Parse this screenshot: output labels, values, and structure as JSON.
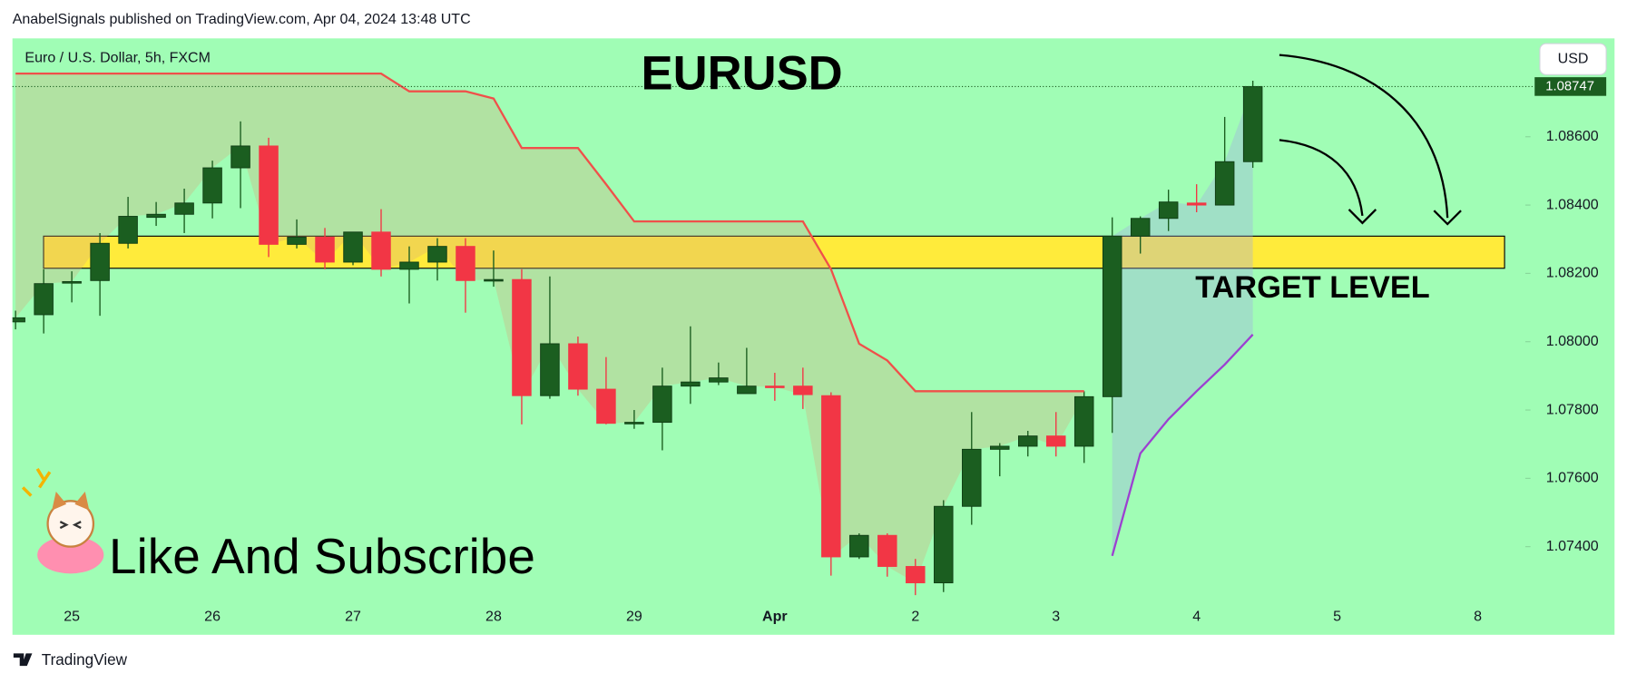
{
  "header": {
    "text": "AnabelSignals published on TradingView.com, Apr 04, 2024 13:48 UTC"
  },
  "footer": {
    "brand": "TradingView"
  },
  "chart_data": {
    "type": "candlestick",
    "title": "EURUSD",
    "symbol": "Euro / U.S. Dollar, 5h, FXCM",
    "currency": "USD",
    "annotations": [
      "TARGET LEVEL",
      "Like And Subscribe"
    ],
    "categories": [
      null,
      null,
      "25",
      null,
      null,
      null,
      null,
      "26",
      null,
      null,
      null,
      null,
      "27",
      null,
      null,
      null,
      null,
      "28",
      null,
      null,
      null,
      null,
      "29",
      null,
      null,
      null,
      null,
      "Apr",
      null,
      null,
      null,
      null,
      "2",
      null,
      null,
      null,
      null,
      "3",
      null,
      null,
      null,
      null,
      "4",
      null,
      null,
      null,
      null,
      "5",
      null,
      null,
      null,
      null,
      "8"
    ],
    "open": [
      1.08058,
      1.08079,
      1.08173,
      1.08179,
      1.08288,
      1.08364,
      1.08373,
      1.08406,
      1.08509,
      1.08573,
      1.08285,
      1.08306,
      1.08233,
      1.08321,
      1.08212,
      1.08233,
      1.08279,
      1.08179,
      1.08182,
      1.07842,
      1.07994,
      1.07861,
      1.07761,
      1.07764,
      1.0787,
      1.07882,
      1.07848,
      1.0787,
      1.0787,
      1.07842,
      1.0737,
      1.07433,
      1.07342,
      1.07294,
      1.07518,
      1.07685,
      1.07694,
      1.07724,
      1.07694,
      1.07839,
      1.08309,
      1.08361,
      1.08406,
      1.084,
      1.08527,
      null,
      null,
      null,
      null,
      null,
      null,
      null,
      null
    ],
    "high": [
      1.08091,
      1.08212,
      1.08206,
      1.08318,
      1.08424,
      1.08409,
      1.08448,
      1.0853,
      1.08645,
      1.08597,
      1.08358,
      1.08333,
      1.08321,
      1.08388,
      1.08279,
      1.08303,
      1.08303,
      1.08267,
      1.08212,
      1.08191,
      1.08015,
      1.07955,
      1.078,
      1.07924,
      1.08045,
      1.07939,
      1.07982,
      1.07909,
      1.07924,
      1.07852,
      1.07439,
      1.07439,
      1.07364,
      1.07536,
      1.07794,
      1.07703,
      1.07739,
      1.07794,
      1.07855,
      1.08364,
      1.08367,
      1.08445,
      1.08461,
      1.08658,
      1.08764,
      null,
      null,
      null,
      null,
      null,
      null,
      null,
      null
    ],
    "low": [
      1.08036,
      1.08024,
      1.08115,
      1.08076,
      1.08273,
      1.08339,
      1.08318,
      1.08361,
      1.08391,
      1.08248,
      1.08273,
      1.08212,
      1.08224,
      1.08191,
      1.08112,
      1.08179,
      1.08085,
      1.08161,
      1.07758,
      1.07833,
      1.07842,
      1.07758,
      1.07745,
      1.07682,
      1.07818,
      1.07873,
      1.07848,
      1.07827,
      1.07803,
      1.07315,
      1.07364,
      1.07312,
      1.07258,
      1.07267,
      1.07464,
      1.07606,
      1.07664,
      1.07664,
      1.07645,
      1.07733,
      1.08258,
      1.08324,
      1.08379,
      1.084,
      1.08509,
      null,
      null,
      null,
      null,
      null,
      null,
      null,
      null
    ],
    "close": [
      1.0807,
      1.0817,
      1.08176,
      1.08288,
      1.08367,
      1.08373,
      1.08406,
      1.08509,
      1.08573,
      1.08285,
      1.08306,
      1.08233,
      1.08321,
      1.08212,
      1.08233,
      1.08279,
      1.08179,
      1.08182,
      1.07842,
      1.07994,
      1.07861,
      1.07761,
      1.07764,
      1.0787,
      1.07882,
      1.07894,
      1.0787,
      1.07867,
      1.07845,
      1.0737,
      1.07433,
      1.07342,
      1.07294,
      1.07518,
      1.07685,
      1.07694,
      1.07724,
      1.07694,
      1.07839,
      1.08309,
      1.08361,
      1.08409,
      1.084,
      1.08527,
      1.08747,
      null,
      null,
      null,
      null,
      null,
      null,
      null,
      null
    ],
    "up_color": "#1b5e20",
    "down_color": "#f23645",
    "lines": [
      {
        "color": "#f0504a",
        "fill": "rgba(214,170,120,0.32)",
        "values": [
          1.08785,
          1.08785,
          1.08785,
          1.08785,
          1.08785,
          1.08785,
          1.08785,
          1.08785,
          1.08785,
          1.08785,
          1.08785,
          1.08785,
          1.08785,
          1.08785,
          1.08733,
          1.08733,
          1.08733,
          1.08712,
          1.08567,
          1.08567,
          1.08567,
          1.08461,
          1.08352,
          1.08352,
          1.08352,
          1.08352,
          1.08352,
          1.08352,
          1.08352,
          1.08212,
          1.07994,
          1.07945,
          1.07855,
          1.07855,
          1.07855,
          1.07855,
          1.07855,
          1.07855,
          1.07855,
          null,
          null,
          null,
          null,
          null,
          null,
          null,
          null,
          null,
          null,
          null,
          null,
          null,
          null
        ]
      },
      {
        "color": "#9c3fd1",
        "fill": "rgba(160,170,230,0.35)",
        "values": [
          null,
          null,
          null,
          null,
          null,
          null,
          null,
          null,
          null,
          null,
          null,
          null,
          null,
          null,
          null,
          null,
          null,
          null,
          null,
          null,
          null,
          null,
          null,
          null,
          null,
          null,
          null,
          null,
          null,
          null,
          null,
          null,
          null,
          null,
          null,
          null,
          null,
          null,
          null,
          1.07373,
          1.07673,
          1.07773,
          1.07855,
          1.07933,
          1.08021,
          null,
          null,
          null,
          null,
          null,
          null,
          null,
          null
        ]
      }
    ],
    "zone": {
      "from": 1.08215,
      "to": 1.08309,
      "color": "#ffeb3b"
    },
    "last_price": {
      "value": 1.08747,
      "label": "1.08747"
    },
    "background": "#a0fdb5",
    "ylim": [
      1.07142,
      1.08888
    ],
    "yticks": [
      {
        "value": 1.074,
        "label": "1.07400"
      },
      {
        "value": 1.076,
        "label": "1.07600"
      },
      {
        "value": 1.078,
        "label": "1.07800"
      },
      {
        "value": 1.08,
        "label": "1.08000"
      },
      {
        "value": 1.082,
        "label": "1.08200"
      },
      {
        "value": 1.084,
        "label": "1.08400"
      },
      {
        "value": 1.086,
        "label": "1.08600"
      }
    ]
  }
}
